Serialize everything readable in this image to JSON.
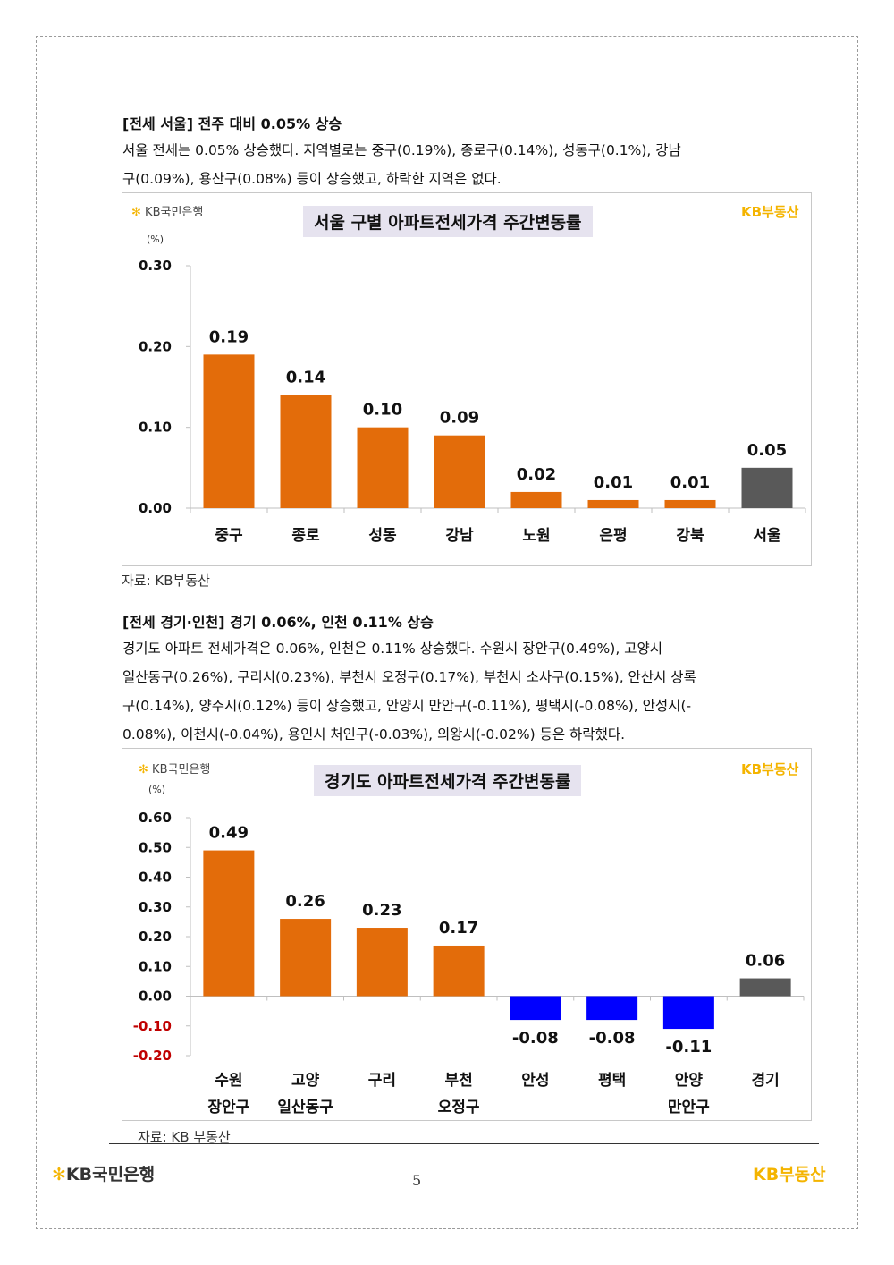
{
  "section1": {
    "heading": "[전세 서울] 전주 대비 0.05% 상승",
    "paragraph_lines": [
      "서울 전세는 0.05% 상승했다. 지역별로는 중구(0.19%), 종로구(0.14%), 성동구(0.1%), 강남",
      "구(0.09%), 용산구(0.08%) 등이 상승했고, 하락한 지역은 없다."
    ],
    "source": "자료: KB부동산"
  },
  "section2": {
    "heading": "[전세 경기·인천] 경기 0.06%, 인천 0.11% 상승",
    "paragraph_lines": [
      "경기도 아파트 전세가격은 0.06%, 인천은 0.11% 상승했다. 수원시 장안구(0.49%), 고양시",
      "일산동구(0.26%), 구리시(0.23%), 부천시 오정구(0.17%), 부천시 소사구(0.15%), 안산시 상록",
      "구(0.14%), 양주시(0.12%) 등이 상승했고, 안양시 만안구(-0.11%), 평택시(-0.08%), 안성시(-",
      "0.08%), 이천시(-0.04%), 용인시 처인구(-0.03%), 의왕시(-0.02%) 등은 하락했다."
    ],
    "source": "자료: KB 부동산"
  },
  "logos": {
    "kb_bank": "KB국민은행",
    "kb_realestate": "KB부동산"
  },
  "footer": {
    "kb_bank": "KB국민은행",
    "kb_realestate": "KB부동산",
    "page_number": "5"
  },
  "colors": {
    "rise": "#e36c0a",
    "fall": "#0000ff",
    "total": "#595959",
    "negative_tick": "#c00000"
  },
  "chart_data": [
    {
      "type": "bar",
      "title": "서울 구별 아파트전세가격 주간변동률",
      "unit": "(%)",
      "categories": [
        [
          "중구"
        ],
        [
          "종로"
        ],
        [
          "성동"
        ],
        [
          "강남"
        ],
        [
          "노원"
        ],
        [
          "은평"
        ],
        [
          "강북"
        ],
        [
          "서울"
        ]
      ],
      "values": [
        0.19,
        0.14,
        0.1,
        0.09,
        0.02,
        0.01,
        0.01,
        0.05
      ],
      "value_labels": [
        "0.19",
        "0.14",
        "0.10",
        "0.09",
        "0.02",
        "0.01",
        "0.01",
        "0.05"
      ],
      "bar_kinds": [
        "rise",
        "rise",
        "rise",
        "rise",
        "rise",
        "rise",
        "rise",
        "total"
      ],
      "ylim": [
        0,
        0.3
      ],
      "yticks": [
        0.0,
        0.1,
        0.2,
        0.3
      ],
      "ytick_labels": [
        "0.00",
        "0.10",
        "0.20",
        "0.30"
      ]
    },
    {
      "type": "bar",
      "title": "경기도 아파트전세가격 주간변동률",
      "unit": "(%)",
      "categories": [
        [
          "수원",
          "장안구"
        ],
        [
          "고양",
          "일산동구"
        ],
        [
          "구리"
        ],
        [
          "부천",
          "오정구"
        ],
        [
          "안성"
        ],
        [
          "평택"
        ],
        [
          "안양",
          "만안구"
        ],
        [
          "경기"
        ]
      ],
      "values": [
        0.49,
        0.26,
        0.23,
        0.17,
        -0.08,
        -0.08,
        -0.11,
        0.06
      ],
      "value_labels": [
        "0.49",
        "0.26",
        "0.23",
        "0.17",
        "-0.08",
        "-0.08",
        "-0.11",
        "0.06"
      ],
      "bar_kinds": [
        "rise",
        "rise",
        "rise",
        "rise",
        "fall",
        "fall",
        "fall",
        "total"
      ],
      "ylim": [
        -0.2,
        0.6
      ],
      "yticks": [
        0.6,
        0.5,
        0.4,
        0.3,
        0.2,
        0.1,
        0.0,
        -0.1,
        -0.2
      ],
      "ytick_labels": [
        "0.60",
        "0.50",
        "0.40",
        "0.30",
        "0.20",
        "0.10",
        "0.00",
        "-0.10",
        "-0.20"
      ]
    }
  ]
}
